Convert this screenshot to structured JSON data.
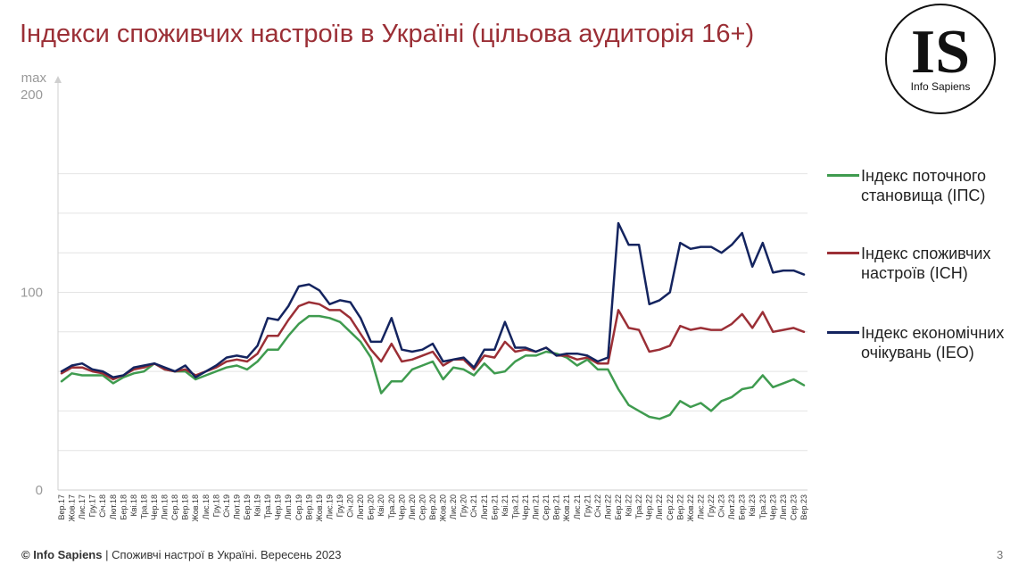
{
  "title": "Індекси споживчих настроїв в Україні (цільова аудиторія 16+)",
  "logo": {
    "text": "IS",
    "subtitle": "Info Sapiens"
  },
  "footer": {
    "brand": "© Info Sapiens",
    "text": " | Споживчі настрої в Україні. Вересень 2023"
  },
  "page_number": "3",
  "colors": {
    "ips": "#3f9b4f",
    "icn": "#9b2f36",
    "ieo": "#14245f"
  },
  "chart_data": {
    "type": "line",
    "y_tick_labels": [
      {
        "value": 200,
        "label": "200",
        "label_top": "max"
      },
      {
        "value": 100,
        "label": "100"
      },
      {
        "value": 0,
        "label": "0"
      }
    ],
    "ylim": [
      0,
      200
    ],
    "gridlines": [
      20,
      40,
      60,
      80,
      100,
      120,
      140,
      160
    ],
    "x": [
      "Вер.17",
      "Жов.17",
      "Лис.17",
      "Гру.17",
      "Січ.18",
      "Лют.18",
      "Бер.18",
      "Кві.18",
      "Тра.18",
      "Чер.18",
      "Лип.18",
      "Сер.18",
      "Вер.18",
      "Жов.18",
      "Лис.18",
      "Гру.18",
      "Січ.19",
      "Лют.19",
      "Бер.19",
      "Кві.19",
      "Тра.19",
      "Чер.19",
      "Лип.19",
      "Сер.19",
      "Вер.19",
      "Жов.19",
      "Лис.19",
      "Гру.19",
      "Січ.20",
      "Лют.20",
      "Бер.20",
      "Кві.20",
      "Тра.20",
      "Чер.20",
      "Лип.20",
      "Сер.20",
      "Вер.20",
      "Жов.20",
      "Лис.20",
      "Гру.20",
      "Січ.21",
      "Лют.21",
      "Бер.21",
      "Кві.21",
      "Тра.21",
      "Чер.21",
      "Лип.21",
      "Сер.21",
      "Вер.21",
      "Жов.21",
      "Лис.21",
      "Гру.21",
      "Січ.22",
      "Лют.22",
      "Бер.22",
      "Кві.22",
      "Тра.22",
      "Чер.22",
      "Лип.22",
      "Сер.22",
      "Вер.22",
      "Жов.22",
      "Лис.22",
      "Гру.22",
      "Січ.23",
      "Лют.23",
      "Бер.23",
      "Кві.23",
      "Тра.23",
      "Чер.23",
      "Лип.23",
      "Сер.23",
      "Вер.23"
    ],
    "series": [
      {
        "name": "Індекс поточного становища (ІПС)",
        "color_key": "ips",
        "values": [
          55,
          59,
          58,
          58,
          58,
          54,
          57,
          59,
          60,
          64,
          61,
          60,
          60,
          56,
          58,
          60,
          62,
          63,
          61,
          65,
          71,
          71,
          78,
          84,
          88,
          88,
          87,
          85,
          80,
          75,
          67,
          49,
          55,
          55,
          61,
          63,
          65,
          56,
          62,
          61,
          58,
          64,
          59,
          60,
          65,
          68,
          68,
          70,
          69,
          67,
          63,
          66,
          61,
          61,
          51,
          43,
          40,
          37,
          36,
          38,
          45,
          42,
          44,
          40,
          45,
          47,
          51,
          52,
          58,
          52,
          54,
          56,
          53
        ]
      },
      {
        "name": "Індекс споживчих настроїв (ІСН)",
        "color_key": "icn",
        "values": [
          59,
          62,
          62,
          60,
          59,
          56,
          58,
          61,
          62,
          64,
          61,
          60,
          61,
          58,
          60,
          62,
          65,
          66,
          65,
          69,
          78,
          78,
          86,
          93,
          95,
          94,
          91,
          91,
          87,
          79,
          71,
          65,
          74,
          65,
          66,
          68,
          70,
          63,
          66,
          66,
          61,
          68,
          67,
          75,
          70,
          71,
          70,
          72,
          68,
          68,
          66,
          67,
          64,
          64,
          91,
          82,
          81,
          70,
          71,
          73,
          83,
          81,
          82,
          81,
          81,
          84,
          89,
          82,
          90,
          80,
          81,
          82,
          80
        ]
      },
      {
        "name": "Індекс економічних очікувань (ІЕО)",
        "color_key": "ieo",
        "values": [
          60,
          63,
          64,
          61,
          60,
          57,
          58,
          62,
          63,
          64,
          62,
          60,
          63,
          57,
          60,
          63,
          67,
          68,
          67,
          73,
          87,
          86,
          93,
          103,
          104,
          101,
          94,
          96,
          95,
          87,
          75,
          75,
          87,
          71,
          70,
          71,
          74,
          65,
          66,
          67,
          62,
          71,
          71,
          85,
          72,
          72,
          70,
          72,
          68,
          69,
          69,
          68,
          65,
          67,
          135,
          124,
          124,
          94,
          96,
          100,
          125,
          122,
          123,
          123,
          120,
          124,
          130,
          113,
          125,
          110,
          111,
          111,
          109
        ]
      }
    ]
  }
}
